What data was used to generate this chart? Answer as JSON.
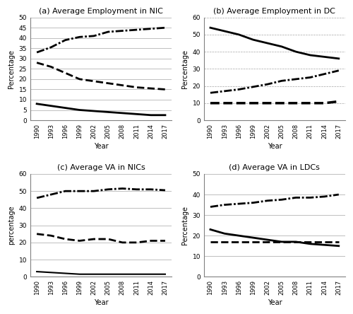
{
  "years": [
    1990,
    1993,
    1996,
    1999,
    2002,
    2005,
    2008,
    2011,
    2014,
    2017
  ],
  "panel_a": {
    "title": "(a) Average Employment in NIC",
    "ylabel": "Percentage",
    "xlabel": "Year",
    "ylim": [
      0,
      50
    ],
    "yticks": [
      0,
      5,
      10,
      15,
      20,
      25,
      30,
      35,
      40,
      45,
      50
    ],
    "grid_style": "solid",
    "line1": [
      33,
      35.5,
      39,
      40.5,
      41,
      43,
      43.5,
      44,
      44.5,
      45
    ],
    "line2": [
      28,
      26,
      23,
      20,
      19,
      18,
      17,
      16,
      15.5,
      15
    ],
    "line3": [
      8,
      7,
      6,
      5,
      4.5,
      4,
      3.5,
      3,
      2.5,
      2.5
    ],
    "ls1": "dashdot",
    "ls2": "dashed",
    "ls3": "solid",
    "lw1": 2.0,
    "lw2": 2.0,
    "lw3": 2.0
  },
  "panel_b": {
    "title": "(b) Average Employment in DC",
    "ylabel": "Percentage",
    "xlabel": "Year",
    "ylim": [
      0,
      60
    ],
    "yticks": [
      0,
      10,
      20,
      30,
      40,
      50,
      60
    ],
    "grid_style": "dashed",
    "line1": [
      54,
      52,
      50,
      47,
      45,
      43,
      40,
      38,
      37,
      36
    ],
    "line2": [
      16,
      17,
      18,
      19.5,
      21,
      23,
      24,
      25,
      27,
      29
    ],
    "line3": [
      10,
      10,
      10,
      10,
      10,
      10,
      10,
      10,
      10,
      11
    ],
    "ls1": "solid",
    "ls2": "dashdot",
    "ls3": "dashed",
    "lw1": 2.0,
    "lw2": 2.0,
    "lw3": 2.5
  },
  "panel_c": {
    "title": "(c) Average VA in NICs",
    "ylabel": "percentage",
    "xlabel": "Year",
    "ylim": [
      0,
      60
    ],
    "yticks": [
      0,
      10,
      20,
      30,
      40,
      50,
      60
    ],
    "grid_style": "solid",
    "line1": [
      46,
      48,
      50,
      50,
      50,
      51,
      51.5,
      51,
      51,
      50.5
    ],
    "line2": [
      25,
      24,
      22,
      21,
      22,
      22,
      20,
      20,
      21,
      21
    ],
    "line3": [
      3,
      2.5,
      2,
      1.5,
      1.5,
      1.5,
      1.5,
      1.5,
      1.5,
      1.5
    ],
    "ls1": "dashdot",
    "ls2": "dashed",
    "ls3": "solid",
    "lw1": 2.0,
    "lw2": 2.0,
    "lw3": 1.5
  },
  "panel_d": {
    "title": "(d) Average VA in LDCs",
    "ylabel": "Percentage",
    "xlabel": "Year",
    "ylim": [
      0,
      50
    ],
    "yticks": [
      0,
      10,
      20,
      30,
      40,
      50
    ],
    "grid_style": "solid",
    "line1": [
      34,
      35,
      35.5,
      36,
      37,
      37.5,
      38.5,
      38.5,
      39,
      40
    ],
    "line2": [
      23,
      21,
      20,
      19,
      18,
      17,
      17,
      16,
      15.5,
      15
    ],
    "line3": [
      17,
      17,
      17,
      17,
      17,
      17,
      17,
      17,
      17,
      17
    ],
    "ls1": "dashdot",
    "ls2": "solid",
    "ls3": "dashed",
    "lw1": 2.0,
    "lw2": 2.0,
    "lw3": 2.0
  }
}
